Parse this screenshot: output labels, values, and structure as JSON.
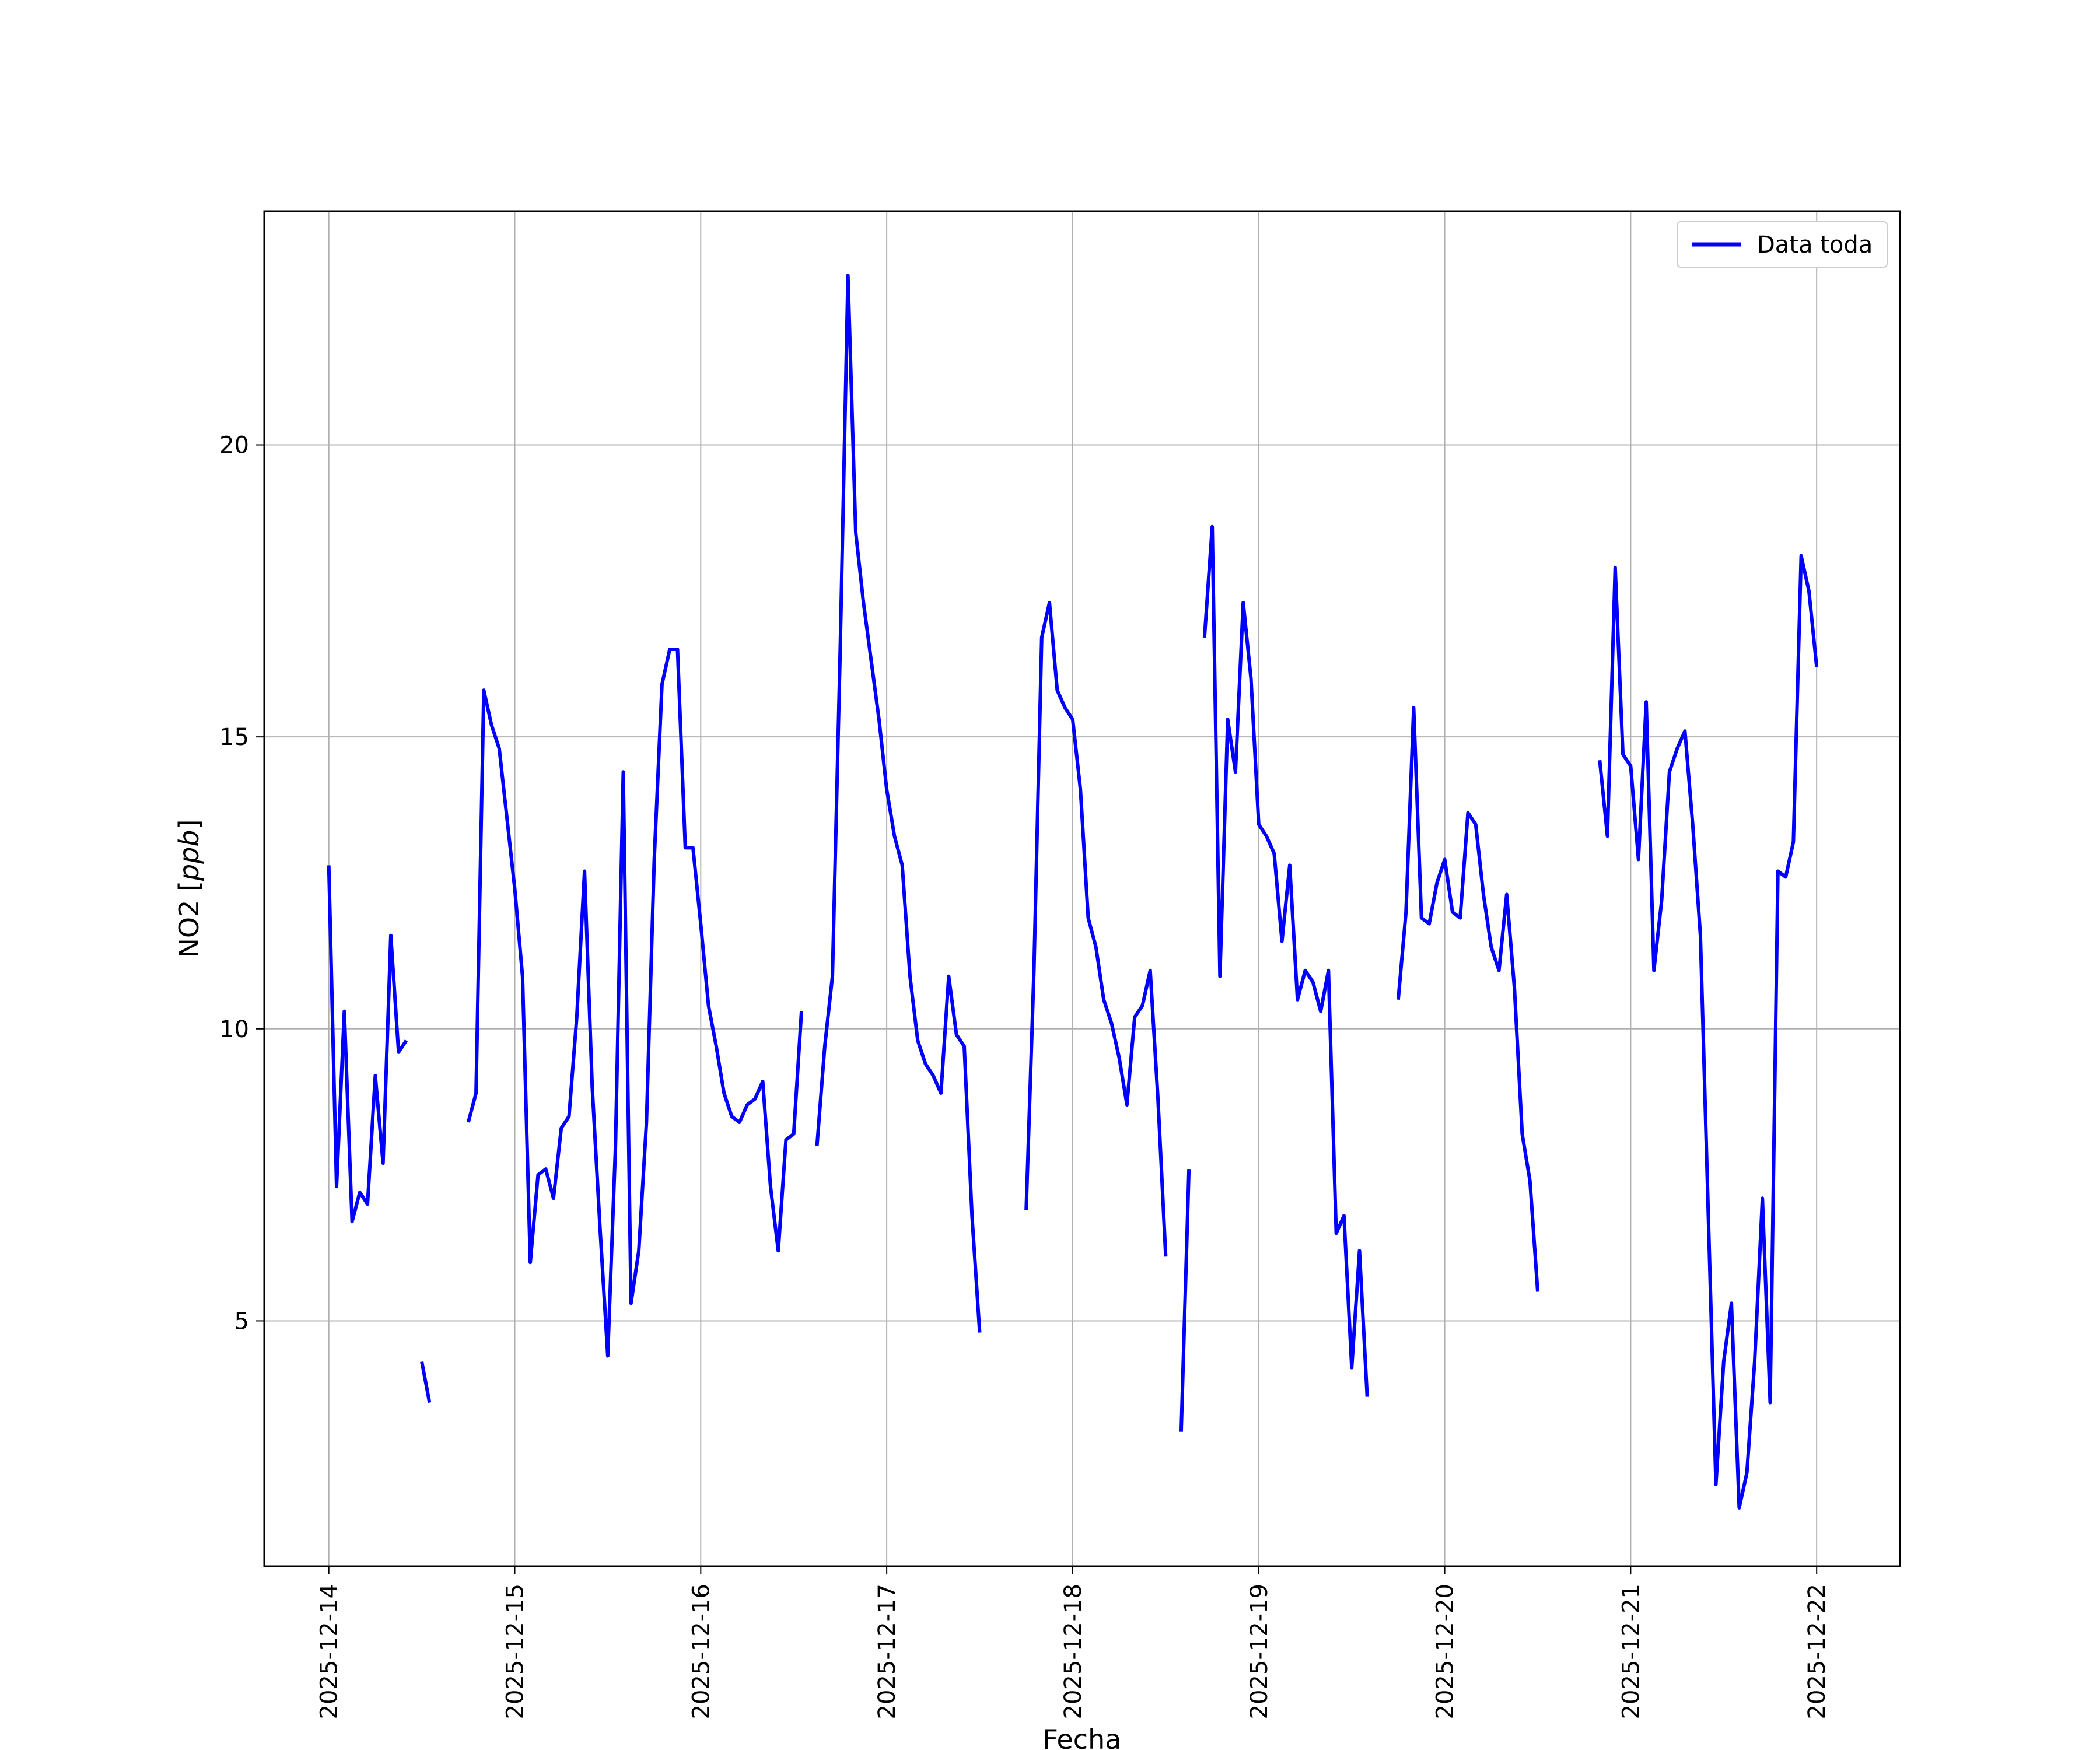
{
  "chart_data": {
    "type": "line",
    "xlabel": "Fecha",
    "ylabel_text": "NO2 [",
    "ylabel_unit": "ppb",
    "ylabel_close": "]",
    "x_range": [
      "2025-12-13 15:40",
      "2025-12-22 10:45"
    ],
    "ylim": [
      0.8,
      24.0
    ],
    "grid": true,
    "legend_position": "top-right",
    "x_ticks": [
      "2025-12-14",
      "2025-12-15",
      "2025-12-16",
      "2025-12-17",
      "2025-12-18",
      "2025-12-19",
      "2025-12-20",
      "2025-12-21",
      "2025-12-22"
    ],
    "y_ticks": [
      5,
      10,
      15,
      20
    ],
    "series": [
      {
        "name": "Data toda",
        "color": "#0000ff",
        "segments": [
          [
            [
              "2025-12-14 00:00",
              12.8
            ],
            [
              "2025-12-14 01:00",
              7.3
            ],
            [
              "2025-12-14 02:00",
              10.3
            ],
            [
              "2025-12-14 03:00",
              6.7
            ],
            [
              "2025-12-14 04:00",
              7.2
            ],
            [
              "2025-12-14 05:00",
              7.0
            ],
            [
              "2025-12-14 06:00",
              9.2
            ],
            [
              "2025-12-14 07:00",
              7.7
            ],
            [
              "2025-12-14 08:00",
              11.6
            ],
            [
              "2025-12-14 09:00",
              9.6
            ],
            [
              "2025-12-14 10:00",
              9.8
            ]
          ],
          [
            [
              "2025-12-14 12:00",
              4.3
            ],
            [
              "2025-12-14 13:00",
              3.6
            ]
          ],
          [
            [
              "2025-12-14 18:00",
              8.4
            ],
            [
              "2025-12-14 19:00",
              8.9
            ],
            [
              "2025-12-14 20:00",
              15.8
            ],
            [
              "2025-12-14 21:00",
              15.2
            ],
            [
              "2025-12-14 22:00",
              14.8
            ],
            [
              "2025-12-14 23:00",
              13.6
            ],
            [
              "2025-12-15 00:00",
              12.4
            ],
            [
              "2025-12-15 01:00",
              10.9
            ],
            [
              "2025-12-15 02:00",
              6.0
            ],
            [
              "2025-12-15 03:00",
              7.5
            ],
            [
              "2025-12-15 04:00",
              7.6
            ],
            [
              "2025-12-15 05:00",
              7.1
            ],
            [
              "2025-12-15 06:00",
              8.3
            ],
            [
              "2025-12-15 07:00",
              8.5
            ],
            [
              "2025-12-15 08:00",
              10.2
            ],
            [
              "2025-12-15 09:00",
              12.7
            ],
            [
              "2025-12-15 10:00",
              9.0
            ],
            [
              "2025-12-15 11:00",
              6.6
            ],
            [
              "2025-12-15 12:00",
              4.4
            ],
            [
              "2025-12-15 13:00",
              8.0
            ],
            [
              "2025-12-15 14:00",
              14.4
            ],
            [
              "2025-12-15 15:00",
              5.3
            ],
            [
              "2025-12-15 16:00",
              6.2
            ],
            [
              "2025-12-15 17:00",
              8.4
            ],
            [
              "2025-12-15 18:00",
              12.9
            ],
            [
              "2025-12-15 19:00",
              15.9
            ],
            [
              "2025-12-15 20:00",
              16.5
            ],
            [
              "2025-12-15 21:00",
              16.5
            ],
            [
              "2025-12-15 22:00",
              13.1
            ],
            [
              "2025-12-15 23:00",
              13.1
            ],
            [
              "2025-12-16 00:00",
              11.8
            ],
            [
              "2025-12-16 01:00",
              10.4
            ],
            [
              "2025-12-16 02:00",
              9.7
            ],
            [
              "2025-12-16 03:00",
              8.9
            ],
            [
              "2025-12-16 04:00",
              8.5
            ],
            [
              "2025-12-16 05:00",
              8.4
            ],
            [
              "2025-12-16 06:00",
              8.7
            ],
            [
              "2025-12-16 07:00",
              8.8
            ],
            [
              "2025-12-16 08:00",
              9.1
            ],
            [
              "2025-12-16 09:00",
              7.3
            ],
            [
              "2025-12-16 10:00",
              6.2
            ],
            [
              "2025-12-16 11:00",
              8.1
            ],
            [
              "2025-12-16 12:00",
              8.2
            ],
            [
              "2025-12-16 13:00",
              10.3
            ]
          ],
          [
            [
              "2025-12-16 15:00",
              8.0
            ],
            [
              "2025-12-16 16:00",
              9.7
            ],
            [
              "2025-12-16 17:00",
              10.9
            ],
            [
              "2025-12-16 18:00",
              16.5
            ],
            [
              "2025-12-16 19:00",
              22.9
            ],
            [
              "2025-12-16 20:00",
              18.5
            ],
            [
              "2025-12-16 21:00",
              17.3
            ],
            [
              "2025-12-16 22:00",
              16.3
            ],
            [
              "2025-12-16 23:00",
              15.3
            ],
            [
              "2025-12-17 00:00",
              14.1
            ],
            [
              "2025-12-17 01:00",
              13.3
            ],
            [
              "2025-12-17 02:00",
              12.8
            ],
            [
              "2025-12-17 03:00",
              10.9
            ],
            [
              "2025-12-17 04:00",
              9.8
            ],
            [
              "2025-12-17 05:00",
              9.4
            ],
            [
              "2025-12-17 06:00",
              9.2
            ],
            [
              "2025-12-17 07:00",
              8.9
            ],
            [
              "2025-12-17 08:00",
              10.9
            ],
            [
              "2025-12-17 09:00",
              9.9
            ],
            [
              "2025-12-17 10:00",
              9.7
            ],
            [
              "2025-12-17 11:00",
              6.8
            ],
            [
              "2025-12-17 12:00",
              4.8
            ]
          ],
          [
            [
              "2025-12-17 18:00",
              6.9
            ],
            [
              "2025-12-17 19:00",
              11.0
            ],
            [
              "2025-12-17 20:00",
              16.7
            ],
            [
              "2025-12-17 21:00",
              17.3
            ],
            [
              "2025-12-17 22:00",
              15.8
            ],
            [
              "2025-12-17 23:00",
              15.5
            ],
            [
              "2025-12-18 00:00",
              15.3
            ],
            [
              "2025-12-18 01:00",
              14.1
            ],
            [
              "2025-12-18 02:00",
              11.9
            ],
            [
              "2025-12-18 03:00",
              11.4
            ],
            [
              "2025-12-18 04:00",
              10.5
            ],
            [
              "2025-12-18 05:00",
              10.1
            ],
            [
              "2025-12-18 06:00",
              9.5
            ],
            [
              "2025-12-18 07:00",
              8.7
            ],
            [
              "2025-12-18 08:00",
              10.2
            ],
            [
              "2025-12-18 09:00",
              10.4
            ],
            [
              "2025-12-18 10:00",
              11.0
            ],
            [
              "2025-12-18 11:00",
              8.8
            ],
            [
              "2025-12-18 12:00",
              6.1
            ]
          ],
          [
            [
              "2025-12-18 14:00",
              3.1
            ],
            [
              "2025-12-18 15:00",
              7.6
            ]
          ],
          [
            [
              "2025-12-18 17:00",
              16.7
            ],
            [
              "2025-12-18 18:00",
              18.6
            ],
            [
              "2025-12-18 19:00",
              10.9
            ],
            [
              "2025-12-18 20:00",
              15.3
            ],
            [
              "2025-12-18 21:00",
              14.4
            ],
            [
              "2025-12-18 22:00",
              17.3
            ],
            [
              "2025-12-18 23:00",
              16.0
            ],
            [
              "2025-12-19 00:00",
              13.5
            ],
            [
              "2025-12-19 01:00",
              13.3
            ],
            [
              "2025-12-19 02:00",
              13.0
            ],
            [
              "2025-12-19 03:00",
              11.5
            ],
            [
              "2025-12-19 04:00",
              12.8
            ],
            [
              "2025-12-19 05:00",
              10.5
            ],
            [
              "2025-12-19 06:00",
              11.0
            ],
            [
              "2025-12-19 07:00",
              10.8
            ],
            [
              "2025-12-19 08:00",
              10.3
            ],
            [
              "2025-12-19 09:00",
              11.0
            ],
            [
              "2025-12-19 10:00",
              6.5
            ],
            [
              "2025-12-19 11:00",
              6.8
            ],
            [
              "2025-12-19 12:00",
              4.2
            ],
            [
              "2025-12-19 13:00",
              6.2
            ],
            [
              "2025-12-19 14:00",
              3.7
            ]
          ],
          [
            [
              "2025-12-19 18:00",
              10.5
            ],
            [
              "2025-12-19 19:00",
              12.0
            ],
            [
              "2025-12-19 20:00",
              15.5
            ],
            [
              "2025-12-19 21:00",
              11.9
            ],
            [
              "2025-12-19 22:00",
              11.8
            ],
            [
              "2025-12-19 23:00",
              12.5
            ],
            [
              "2025-12-20 00:00",
              12.9
            ],
            [
              "2025-12-20 01:00",
              12.0
            ],
            [
              "2025-12-20 02:00",
              11.9
            ],
            [
              "2025-12-20 03:00",
              13.7
            ],
            [
              "2025-12-20 04:00",
              13.5
            ],
            [
              "2025-12-20 05:00",
              12.3
            ],
            [
              "2025-12-20 06:00",
              11.4
            ],
            [
              "2025-12-20 07:00",
              11.0
            ],
            [
              "2025-12-20 08:00",
              12.3
            ],
            [
              "2025-12-20 09:00",
              10.7
            ],
            [
              "2025-12-20 10:00",
              8.2
            ],
            [
              "2025-12-20 11:00",
              7.4
            ],
            [
              "2025-12-20 12:00",
              5.5
            ]
          ],
          [
            [
              "2025-12-20 20:00",
              14.6
            ],
            [
              "2025-12-20 21:00",
              13.3
            ],
            [
              "2025-12-20 22:00",
              17.9
            ],
            [
              "2025-12-20 23:00",
              14.7
            ],
            [
              "2025-12-21 00:00",
              14.5
            ],
            [
              "2025-12-21 01:00",
              12.9
            ],
            [
              "2025-12-21 02:00",
              15.6
            ],
            [
              "2025-12-21 03:00",
              11.0
            ],
            [
              "2025-12-21 04:00",
              12.2
            ],
            [
              "2025-12-21 05:00",
              14.4
            ],
            [
              "2025-12-21 06:00",
              14.8
            ],
            [
              "2025-12-21 07:00",
              15.1
            ],
            [
              "2025-12-21 08:00",
              13.5
            ],
            [
              "2025-12-21 09:00",
              11.6
            ],
            [
              "2025-12-21 10:00",
              6.9
            ],
            [
              "2025-12-21 11:00",
              2.2
            ],
            [
              "2025-12-21 12:00",
              4.3
            ],
            [
              "2025-12-21 13:00",
              5.3
            ],
            [
              "2025-12-21 14:00",
              1.8
            ],
            [
              "2025-12-21 15:00",
              2.4
            ],
            [
              "2025-12-21 16:00",
              4.3
            ],
            [
              "2025-12-21 17:00",
              7.1
            ],
            [
              "2025-12-21 18:00",
              3.6
            ],
            [
              "2025-12-21 19:00",
              12.7
            ],
            [
              "2025-12-21 20:00",
              12.6
            ],
            [
              "2025-12-21 21:00",
              13.2
            ],
            [
              "2025-12-21 22:00",
              18.1
            ],
            [
              "2025-12-21 23:00",
              17.5
            ],
            [
              "2025-12-22 00:00",
              16.2
            ]
          ]
        ]
      }
    ]
  }
}
